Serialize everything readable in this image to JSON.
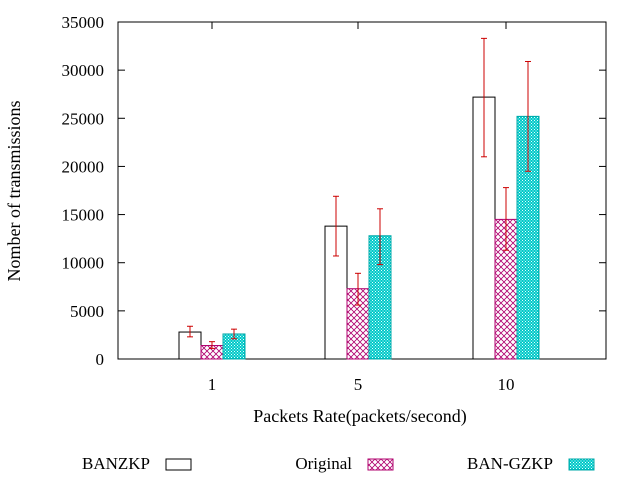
{
  "chart_data": {
    "type": "bar",
    "title": "",
    "xlabel": "Packets Rate(packets/second)",
    "ylabel": "Nomber of transmissions",
    "categories": [
      "1",
      "5",
      "10"
    ],
    "ylim": [
      0,
      35000
    ],
    "yticks": [
      "0",
      "5000",
      "10000",
      "15000",
      "20000",
      "25000",
      "30000",
      "35000"
    ],
    "grid": false,
    "legend_position": "bottom",
    "series": [
      {
        "name": "BANZKP",
        "fill": "none",
        "color": "#000000",
        "values": [
          2800,
          13800,
          27200
        ],
        "error_low": [
          2300,
          10700,
          21000
        ],
        "error_high": [
          3400,
          16900,
          33300
        ]
      },
      {
        "name": "Original",
        "fill": "crosshatch",
        "color": "#b0006e",
        "values": [
          1400,
          7300,
          14500
        ],
        "error_low": [
          1100,
          5600,
          11300
        ],
        "error_high": [
          1800,
          8900,
          17800
        ]
      },
      {
        "name": "BAN-GZKP",
        "fill": "dots",
        "color": "#00a8a8",
        "values": [
          2600,
          12800,
          25200
        ],
        "error_low": [
          2100,
          9800,
          19500
        ],
        "error_high": [
          3100,
          15600,
          30900
        ]
      }
    ],
    "error_bar_color": "#cc0000"
  }
}
